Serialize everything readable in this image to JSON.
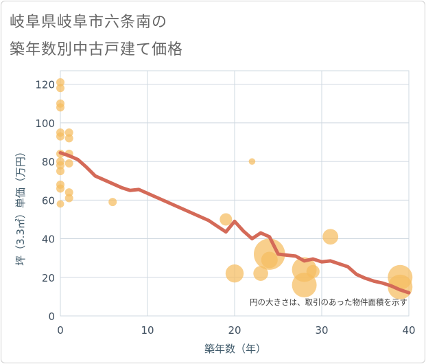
{
  "title_line1": "岐阜県岐阜市六条南の",
  "title_line2": "築年数別中古戸建て価格",
  "chart_data": {
    "type": "scatter",
    "title": "岐阜県岐阜市六条南の築年数別中古戸建て価格",
    "xlabel": "築年数（年）",
    "ylabel": "坪（3.3㎡）単価（万円）",
    "xlim": [
      0,
      40
    ],
    "ylim": [
      0,
      127
    ],
    "xticks": [
      0,
      10,
      20,
      30,
      40
    ],
    "yticks": [
      0,
      20,
      40,
      60,
      80,
      100,
      120
    ],
    "grid": true,
    "note": "円の大きさは、取引のあった物件面積を示す",
    "colors": {
      "bubble": "#f5bd5f",
      "line": "#d46a58",
      "grid": "#cfd8e0",
      "text": "#3f4f5f"
    },
    "points": [
      {
        "x": 0,
        "y": 121,
        "size": 1
      },
      {
        "x": 0,
        "y": 118,
        "size": 1
      },
      {
        "x": 0,
        "y": 110,
        "size": 1
      },
      {
        "x": 0,
        "y": 108,
        "size": 1
      },
      {
        "x": 0,
        "y": 95,
        "size": 1
      },
      {
        "x": 0,
        "y": 93,
        "size": 1
      },
      {
        "x": 0,
        "y": 84,
        "size": 1
      },
      {
        "x": 0,
        "y": 80,
        "size": 1
      },
      {
        "x": 0,
        "y": 78,
        "size": 1
      },
      {
        "x": 0,
        "y": 75,
        "size": 1
      },
      {
        "x": 0,
        "y": 68,
        "size": 1
      },
      {
        "x": 0,
        "y": 66,
        "size": 1
      },
      {
        "x": 0,
        "y": 58,
        "size": 0.9
      },
      {
        "x": 1,
        "y": 95,
        "size": 1
      },
      {
        "x": 1,
        "y": 92,
        "size": 1
      },
      {
        "x": 1,
        "y": 84,
        "size": 1
      },
      {
        "x": 1,
        "y": 79,
        "size": 1
      },
      {
        "x": 1,
        "y": 64,
        "size": 1
      },
      {
        "x": 1,
        "y": 61,
        "size": 1
      },
      {
        "x": 6,
        "y": 59,
        "size": 1
      },
      {
        "x": 19,
        "y": 50,
        "size": 1.5
      },
      {
        "x": 20,
        "y": 22,
        "size": 2.2
      },
      {
        "x": 22,
        "y": 80,
        "size": 0.8
      },
      {
        "x": 23,
        "y": 22,
        "size": 1.8
      },
      {
        "x": 24,
        "y": 32,
        "size": 3.8
      },
      {
        "x": 24,
        "y": 29,
        "size": 2
      },
      {
        "x": 28,
        "y": 24,
        "size": 3
      },
      {
        "x": 28,
        "y": 16,
        "size": 3
      },
      {
        "x": 29,
        "y": 23,
        "size": 1.6
      },
      {
        "x": 31,
        "y": 41,
        "size": 1.9
      },
      {
        "x": 39,
        "y": 20,
        "size": 3
      },
      {
        "x": 39,
        "y": 15,
        "size": 3
      }
    ],
    "trend": {
      "x": [
        0,
        1,
        2,
        3,
        4,
        5,
        6,
        7,
        8,
        9,
        10,
        11,
        12,
        13,
        14,
        15,
        16,
        17,
        18,
        19,
        20,
        21,
        22,
        23,
        24,
        25,
        26,
        27,
        28,
        29,
        30,
        31,
        32,
        33,
        34,
        35,
        36,
        37,
        38,
        39,
        40
      ],
      "y": [
        84.5,
        83,
        81,
        77,
        72.5,
        70.5,
        68.5,
        66.5,
        65,
        65.5,
        63.5,
        61.5,
        59.5,
        57.5,
        55.5,
        53.5,
        51.5,
        49.5,
        46.5,
        43.5,
        49,
        44,
        40,
        43,
        41,
        32,
        31.5,
        31,
        28.5,
        29.5,
        28,
        28.5,
        27,
        25.5,
        21.5,
        19.5,
        18,
        17,
        15.5,
        13.5,
        12
      ]
    }
  }
}
